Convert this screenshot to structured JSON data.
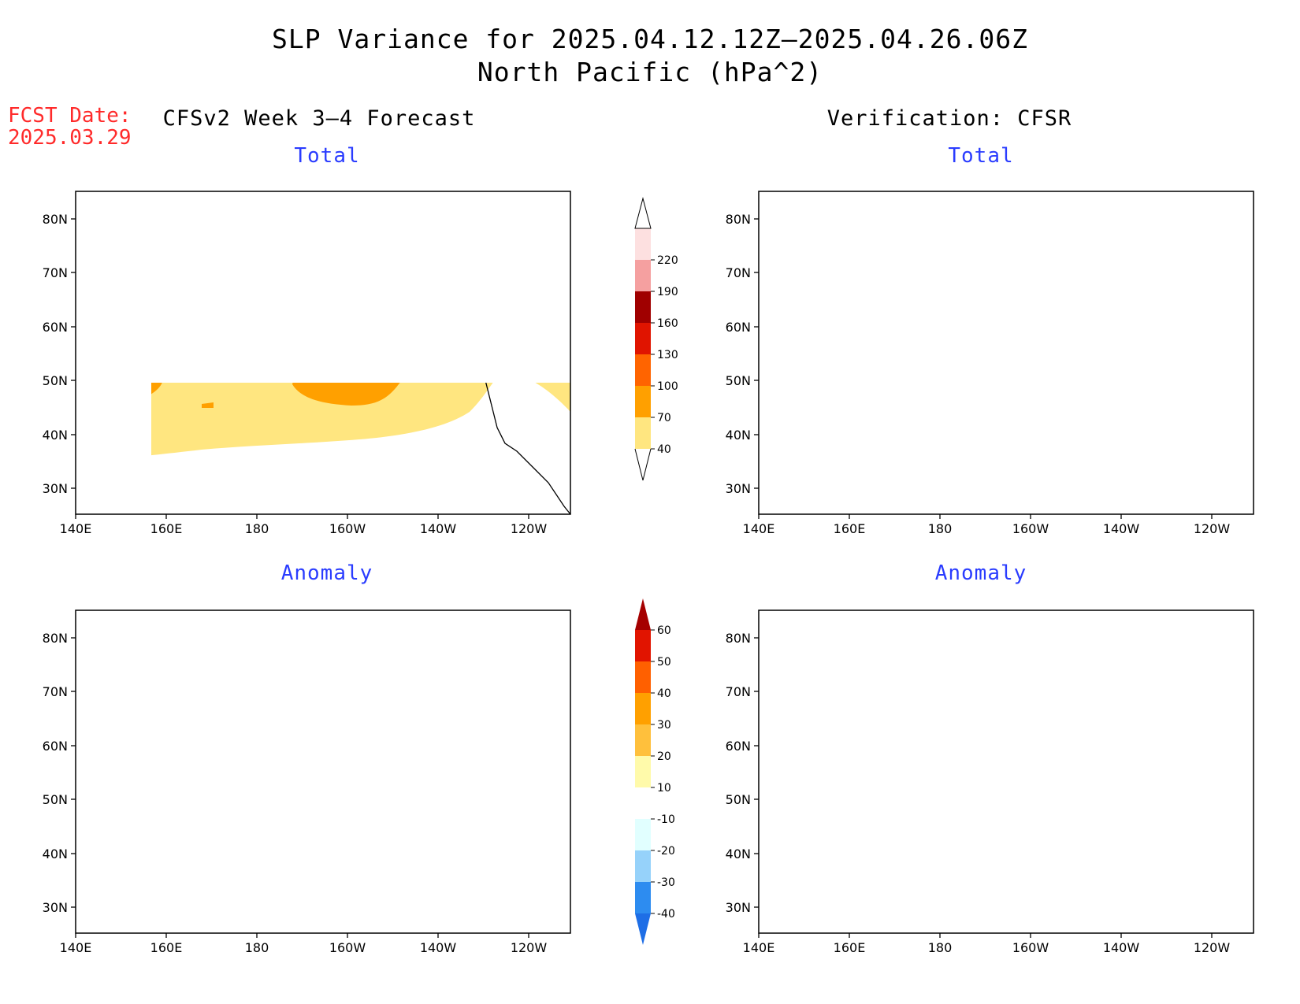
{
  "header": {
    "title_line1": "SLP Variance for 2025.04.12.12Z–2025.04.26.06Z",
    "title_line2": "North Pacific (hPa^2)",
    "fcst_label": "FCST Date:",
    "fcst_date": "2025.03.29",
    "left_heading": "CFSv2 Week 3–4 Forecast",
    "right_heading": "Verification: CFSR"
  },
  "panels": [
    {
      "title": "Total"
    },
    {
      "title": "Total"
    },
    {
      "title": "Anomaly"
    },
    {
      "title": "Anomaly"
    }
  ],
  "axes": {
    "lat_labels": [
      "80N",
      "70N",
      "60N",
      "50N",
      "40N",
      "30N"
    ],
    "lon_labels": [
      "140E",
      "160E",
      "180",
      "160W",
      "140W",
      "120W"
    ]
  },
  "colorbars": {
    "total": {
      "levels": [
        "40",
        "70",
        "100",
        "130",
        "160",
        "190",
        "220"
      ],
      "colors": [
        "#ffe680",
        "#ffa000",
        "#ff6400",
        "#e01400",
        "#a00000",
        "#f5a0a0",
        "#fde0e0"
      ]
    },
    "anomaly": {
      "levels": [
        "-40",
        "-30",
        "-20",
        "-10",
        "10",
        "20",
        "30",
        "40",
        "50",
        "60"
      ],
      "colors": [
        "#1e6ee6",
        "#2d8cf0",
        "#96d2fa",
        "#e1ffff",
        "#ffffff",
        "#fffaaa",
        "#ffc03c",
        "#ffa000",
        "#ff6000",
        "#e11400",
        "#a50000"
      ]
    }
  }
}
